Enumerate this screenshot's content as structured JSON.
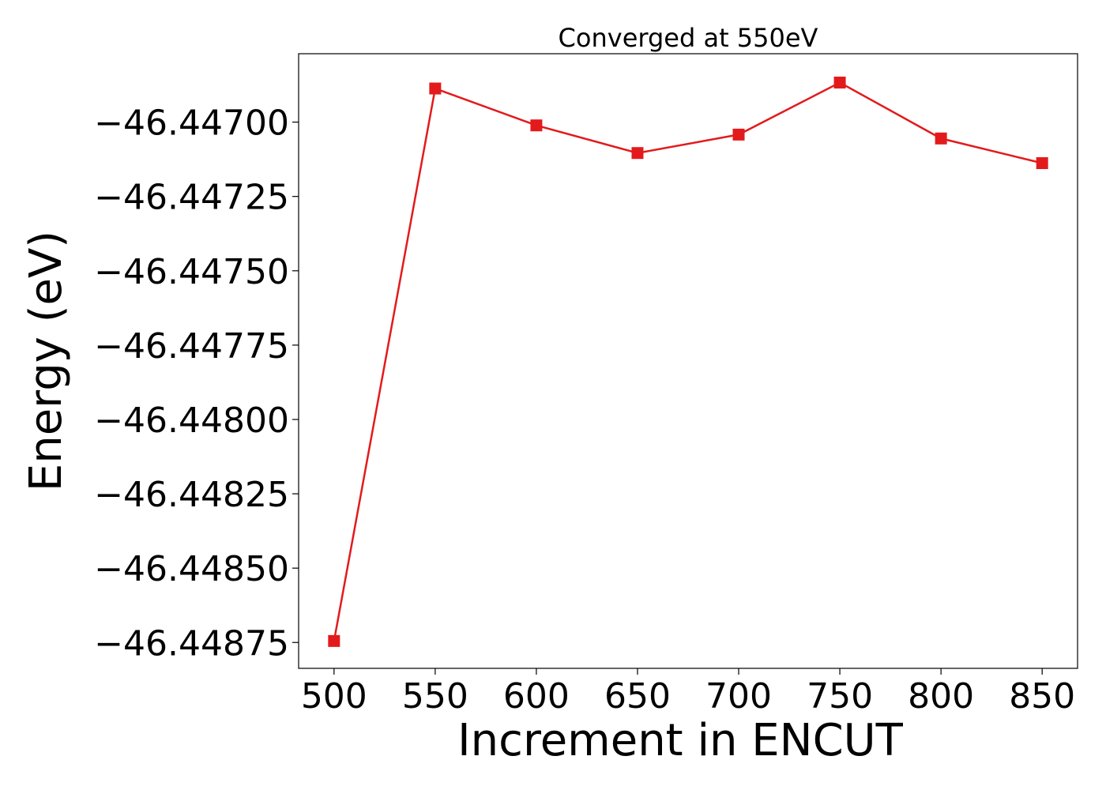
{
  "chart_data": {
    "type": "line",
    "title": "Converged at 550eV",
    "xlabel": "Increment in ENCUT",
    "ylabel": "Energy (eV)",
    "x": [
      500,
      550,
      600,
      650,
      700,
      750,
      800,
      850
    ],
    "series": [
      {
        "values": [
          -46.448745,
          -46.446887,
          -46.447011,
          -46.447104,
          -46.447042,
          -46.446867,
          -46.447055,
          -46.447138
        ],
        "color": "#e31a1c",
        "marker": "square"
      }
    ],
    "x_ticks": [
      500,
      550,
      600,
      650,
      700,
      750,
      800,
      850
    ],
    "x_tick_labels": [
      "500",
      "550",
      "600",
      "650",
      "700",
      "750",
      "800",
      "850"
    ],
    "y_ticks": [
      -46.44875,
      -46.4485,
      -46.44825,
      -46.448,
      -46.44775,
      -46.4475,
      -46.44725,
      -46.447
    ],
    "y_tick_labels": [
      "−46.44875",
      "−46.44850",
      "−46.44825",
      "−46.44800",
      "−46.44775",
      "−46.44750",
      "−46.44725",
      "−46.44700"
    ],
    "xlim": [
      482.5,
      867.5
    ],
    "ylim": [
      -46.448837,
      -46.44677
    ],
    "grid": false,
    "legend": "none"
  }
}
